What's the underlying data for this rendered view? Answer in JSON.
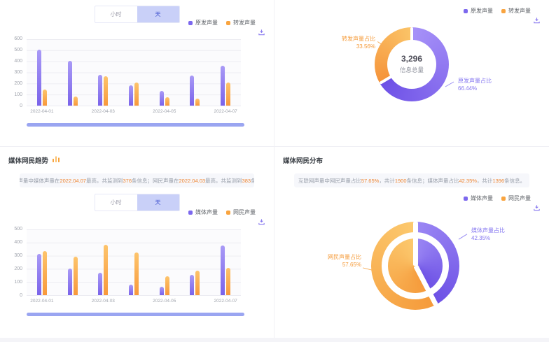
{
  "colors": {
    "purple": "#7C68EE",
    "orange": "#F9A43F",
    "toggle_selected_bg": "#C9D0F8",
    "scrollbar": "#9AA5F1",
    "desc_highlight": "#EE8633"
  },
  "toggle": {
    "hour_label": "小时",
    "day_label": "天"
  },
  "panels": {
    "top_left": {
      "legend": [
        {
          "label": "原发声量"
        },
        {
          "label": "转发声量"
        }
      ]
    },
    "top_right": {
      "legend": [
        {
          "label": "原发声量"
        },
        {
          "label": "转发声量"
        }
      ]
    },
    "bottom_left": {
      "title": "媒体网民趋势",
      "legend": [
        {
          "label": "媒体声量"
        },
        {
          "label": "网民声量"
        }
      ],
      "desc": [
        {
          "t": "互联网声量中媒体声量在",
          "hl": false
        },
        {
          "t": "2022.04.07",
          "hl": true
        },
        {
          "t": "最高，共监测到",
          "hl": false
        },
        {
          "t": "376",
          "hl": true
        },
        {
          "t": "条信息；网民声量在",
          "hl": false
        },
        {
          "t": "2022.04.03",
          "hl": true
        },
        {
          "t": "最高，共监测到",
          "hl": false
        },
        {
          "t": "383",
          "hl": true
        },
        {
          "t": "条信息。",
          "hl": false
        }
      ]
    },
    "bottom_right": {
      "title": "媒体网民分布",
      "legend": [
        {
          "label": "媒体声量"
        },
        {
          "label": "网民声量"
        }
      ],
      "desc": [
        {
          "t": "互联网声量中网民声量占比",
          "hl": false
        },
        {
          "t": "57.65%",
          "hl": true
        },
        {
          "t": "，共计",
          "hl": false
        },
        {
          "t": "1900",
          "hl": true
        },
        {
          "t": "条信息；媒体声量占比",
          "hl": false
        },
        {
          "t": "42.35%",
          "hl": true
        },
        {
          "t": "，共计",
          "hl": false
        },
        {
          "t": "1396",
          "hl": true
        },
        {
          "t": "条信息。",
          "hl": false
        }
      ]
    }
  },
  "chart_data": [
    {
      "type": "bar",
      "title": "",
      "categories": [
        "2022-04-01",
        "2022-04-02",
        "2022-04-03",
        "2022-04-04",
        "2022-04-05",
        "2022-04-06",
        "2022-04-07"
      ],
      "xtick_label_indices": [
        0,
        2,
        4,
        6
      ],
      "ylim": [
        0,
        600
      ],
      "ytick_step": 100,
      "grid": true,
      "legend_position": "top-right",
      "series": [
        {
          "name": "原发声量",
          "color_top": "#A99AF6",
          "color_bottom": "#7A63EA",
          "values": [
            505,
            407,
            280,
            185,
            130,
            270,
            360
          ]
        },
        {
          "name": "转发声量",
          "color_top": "#FDC46C",
          "color_bottom": "#F8993C",
          "values": [
            148,
            85,
            263,
            210,
            75,
            65,
            210
          ]
        }
      ]
    },
    {
      "type": "pie",
      "title": "",
      "center_value": "3,296",
      "center_label": "信息总量",
      "slices": [
        {
          "name": "原发声量占比",
          "pct": 66.44,
          "pct_label": "66.44%",
          "color_start": "#A792F8",
          "color_end": "#6D50E6"
        },
        {
          "name": "转发声量占比",
          "pct": 33.56,
          "pct_label": "33.56%",
          "color_start": "#F5933A",
          "color_end": "#FBC468"
        }
      ]
    },
    {
      "type": "bar",
      "title": "媒体网民趋势",
      "categories": [
        "2022-04-01",
        "2022-04-02",
        "2022-04-03",
        "2022-04-04",
        "2022-04-05",
        "2022-04-06",
        "2022-04-07"
      ],
      "xtick_label_indices": [
        0,
        2,
        4,
        6
      ],
      "ylim": [
        0,
        500
      ],
      "ytick_step": 100,
      "grid": true,
      "legend_position": "top-right",
      "series": [
        {
          "name": "媒体声量",
          "color_top": "#A99AF6",
          "color_bottom": "#7A63EA",
          "values": [
            315,
            203,
            170,
            80,
            65,
            155,
            376
          ]
        },
        {
          "name": "网民声量",
          "color_top": "#FDC46C",
          "color_bottom": "#F8993C",
          "values": [
            335,
            295,
            383,
            325,
            145,
            185,
            205
          ]
        }
      ]
    },
    {
      "type": "pie",
      "title": "媒体网民分布",
      "nested": true,
      "slices": [
        {
          "name": "媒体声量占比",
          "pct": 42.35,
          "pct_label": "42.35%",
          "color_start": "#9B87F4",
          "color_end": "#6C50E5"
        },
        {
          "name": "网民声量占比",
          "pct": 57.65,
          "pct_label": "57.65%",
          "color_start": "#F59A3A",
          "color_end": "#FCC96E"
        }
      ]
    }
  ]
}
